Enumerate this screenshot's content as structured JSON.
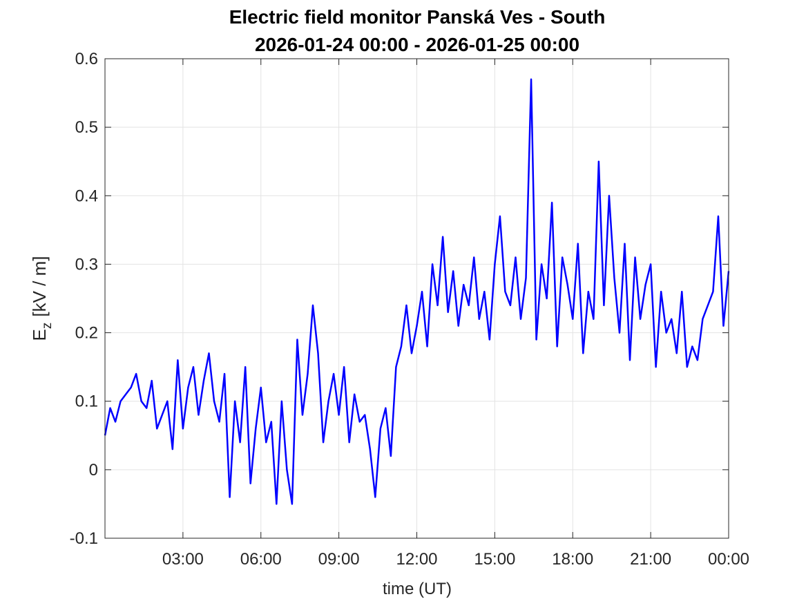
{
  "chart_data": {
    "type": "line",
    "title": [
      "Electric field monitor Panská Ves - South",
      "2026-01-24 00:00 - 2026-01-25 00:00"
    ],
    "xlabel": "time (UT)",
    "ylabel": {
      "symbol": "E",
      "subscript": "z",
      "unit": "[kV / m]"
    },
    "xlim": [
      0,
      24
    ],
    "xticks": [
      {
        "value": 3,
        "label": "03:00"
      },
      {
        "value": 6,
        "label": "06:00"
      },
      {
        "value": 9,
        "label": "09:00"
      },
      {
        "value": 12,
        "label": "12:00"
      },
      {
        "value": 15,
        "label": "15:00"
      },
      {
        "value": 18,
        "label": "18:00"
      },
      {
        "value": 21,
        "label": "21:00"
      },
      {
        "value": 24,
        "label": "00:00"
      }
    ],
    "ylim": [
      -0.1,
      0.6
    ],
    "yticks": [
      -0.1,
      0,
      0.1,
      0.2,
      0.3,
      0.4,
      0.5,
      0.6
    ],
    "grid": true,
    "x": [
      0,
      0.2,
      0.4,
      0.6,
      0.8,
      1,
      1.2,
      1.4,
      1.6,
      1.8,
      2,
      2.2,
      2.4,
      2.6,
      2.8,
      3,
      3.2,
      3.4,
      3.6,
      3.8,
      4,
      4.2,
      4.4,
      4.6,
      4.8,
      5,
      5.2,
      5.4,
      5.6,
      5.8,
      6,
      6.2,
      6.4,
      6.6,
      6.8,
      7,
      7.2,
      7.4,
      7.6,
      7.8,
      8,
      8.2,
      8.4,
      8.6,
      8.8,
      9,
      9.2,
      9.4,
      9.6,
      9.8,
      10,
      10.2,
      10.4,
      10.6,
      10.8,
      11,
      11.2,
      11.4,
      11.6,
      11.8,
      12,
      12.2,
      12.4,
      12.6,
      12.8,
      13,
      13.2,
      13.4,
      13.6,
      13.8,
      14,
      14.2,
      14.4,
      14.6,
      14.8,
      15,
      15.2,
      15.4,
      15.6,
      15.8,
      16,
      16.2,
      16.4,
      16.6,
      16.8,
      17,
      17.2,
      17.4,
      17.6,
      17.8,
      18,
      18.2,
      18.4,
      18.6,
      18.8,
      19,
      19.2,
      19.4,
      19.6,
      19.8,
      20,
      20.2,
      20.4,
      20.6,
      20.8,
      21,
      21.2,
      21.4,
      21.6,
      21.8,
      22,
      22.2,
      22.4,
      22.6,
      22.8,
      23,
      23.2,
      23.4,
      23.6,
      23.8,
      24
    ],
    "series": [
      {
        "color": "#0000ff",
        "values": [
          0.05,
          0.09,
          0.07,
          0.1,
          0.11,
          0.12,
          0.14,
          0.1,
          0.09,
          0.13,
          0.06,
          0.08,
          0.1,
          0.03,
          0.16,
          0.06,
          0.12,
          0.15,
          0.08,
          0.13,
          0.17,
          0.1,
          0.07,
          0.14,
          -0.04,
          0.1,
          0.04,
          0.15,
          -0.02,
          0.06,
          0.12,
          0.04,
          0.07,
          -0.05,
          0.1,
          0.0,
          -0.05,
          0.19,
          0.08,
          0.14,
          0.24,
          0.17,
          0.04,
          0.1,
          0.14,
          0.08,
          0.15,
          0.04,
          0.11,
          0.07,
          0.08,
          0.03,
          -0.04,
          0.06,
          0.09,
          0.02,
          0.15,
          0.18,
          0.24,
          0.17,
          0.21,
          0.26,
          0.18,
          0.3,
          0.24,
          0.34,
          0.23,
          0.29,
          0.21,
          0.27,
          0.24,
          0.31,
          0.22,
          0.26,
          0.19,
          0.3,
          0.37,
          0.26,
          0.24,
          0.31,
          0.22,
          0.28,
          0.57,
          0.19,
          0.3,
          0.25,
          0.39,
          0.18,
          0.31,
          0.27,
          0.22,
          0.33,
          0.17,
          0.26,
          0.22,
          0.45,
          0.24,
          0.4,
          0.28,
          0.2,
          0.33,
          0.16,
          0.31,
          0.22,
          0.27,
          0.3,
          0.15,
          0.26,
          0.2,
          0.22,
          0.17,
          0.26,
          0.15,
          0.18,
          0.16,
          0.22,
          0.24,
          0.26,
          0.37,
          0.21,
          0.29
        ]
      }
    ]
  }
}
